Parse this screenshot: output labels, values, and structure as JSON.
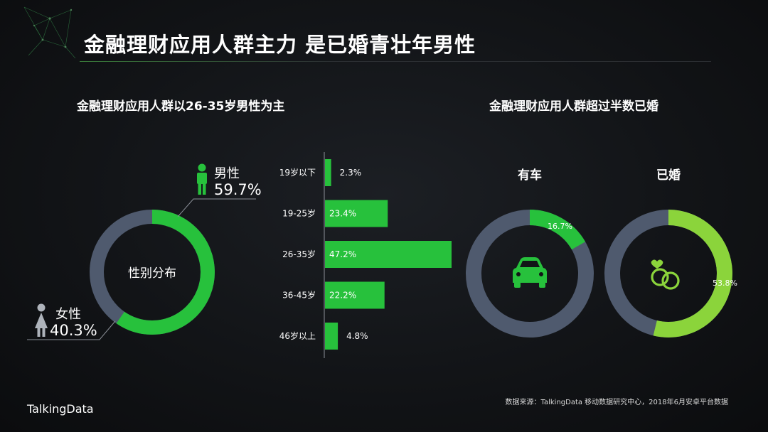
{
  "title": "金融理财应用人群主力 是已婚青壮年男性",
  "left_subtitle": "金融理财应用人群以26-35岁男性为主",
  "right_subtitle": "金融理财应用人群超过半数已婚",
  "source": "数据来源：TalkingData 移动数据研究中心，2018年6月安卓平台数据",
  "brand": "TalkingData",
  "colors": {
    "accent": "#27c13c",
    "base": "#4f5a6e",
    "light_green": "#8bd43b",
    "background": "#121417"
  },
  "chart_data": [
    {
      "type": "pie",
      "center_label": "性别分布",
      "slices": [
        {
          "label": "男性",
          "value": 59.7,
          "value_label": "59.7%",
          "color": "#27c13c",
          "icon": "male-person-icon"
        },
        {
          "label": "女性",
          "value": 40.3,
          "value_label": "40.3%",
          "color": "#4f5a6e",
          "icon": "female-person-icon"
        }
      ]
    },
    {
      "type": "bar",
      "orientation": "horizontal",
      "categories": [
        "19岁以下",
        "19-25岁",
        "26-35岁",
        "36-45岁",
        "46岁以上"
      ],
      "values": [
        2.3,
        23.4,
        47.2,
        22.2,
        4.8
      ],
      "value_labels": [
        "2.3%",
        "23.4%",
        "47.2%",
        "22.2%",
        "4.8%"
      ],
      "color": "#27c13c"
    },
    {
      "type": "pie",
      "label": "有车",
      "icon": "car-icon",
      "value": 16.7,
      "value_label": "16.7%",
      "color": "#27c13c"
    },
    {
      "type": "pie",
      "label": "已婚",
      "icon": "wedding-rings-icon",
      "value": 53.8,
      "value_label": "53.8%",
      "color": "#8bd43b"
    }
  ]
}
